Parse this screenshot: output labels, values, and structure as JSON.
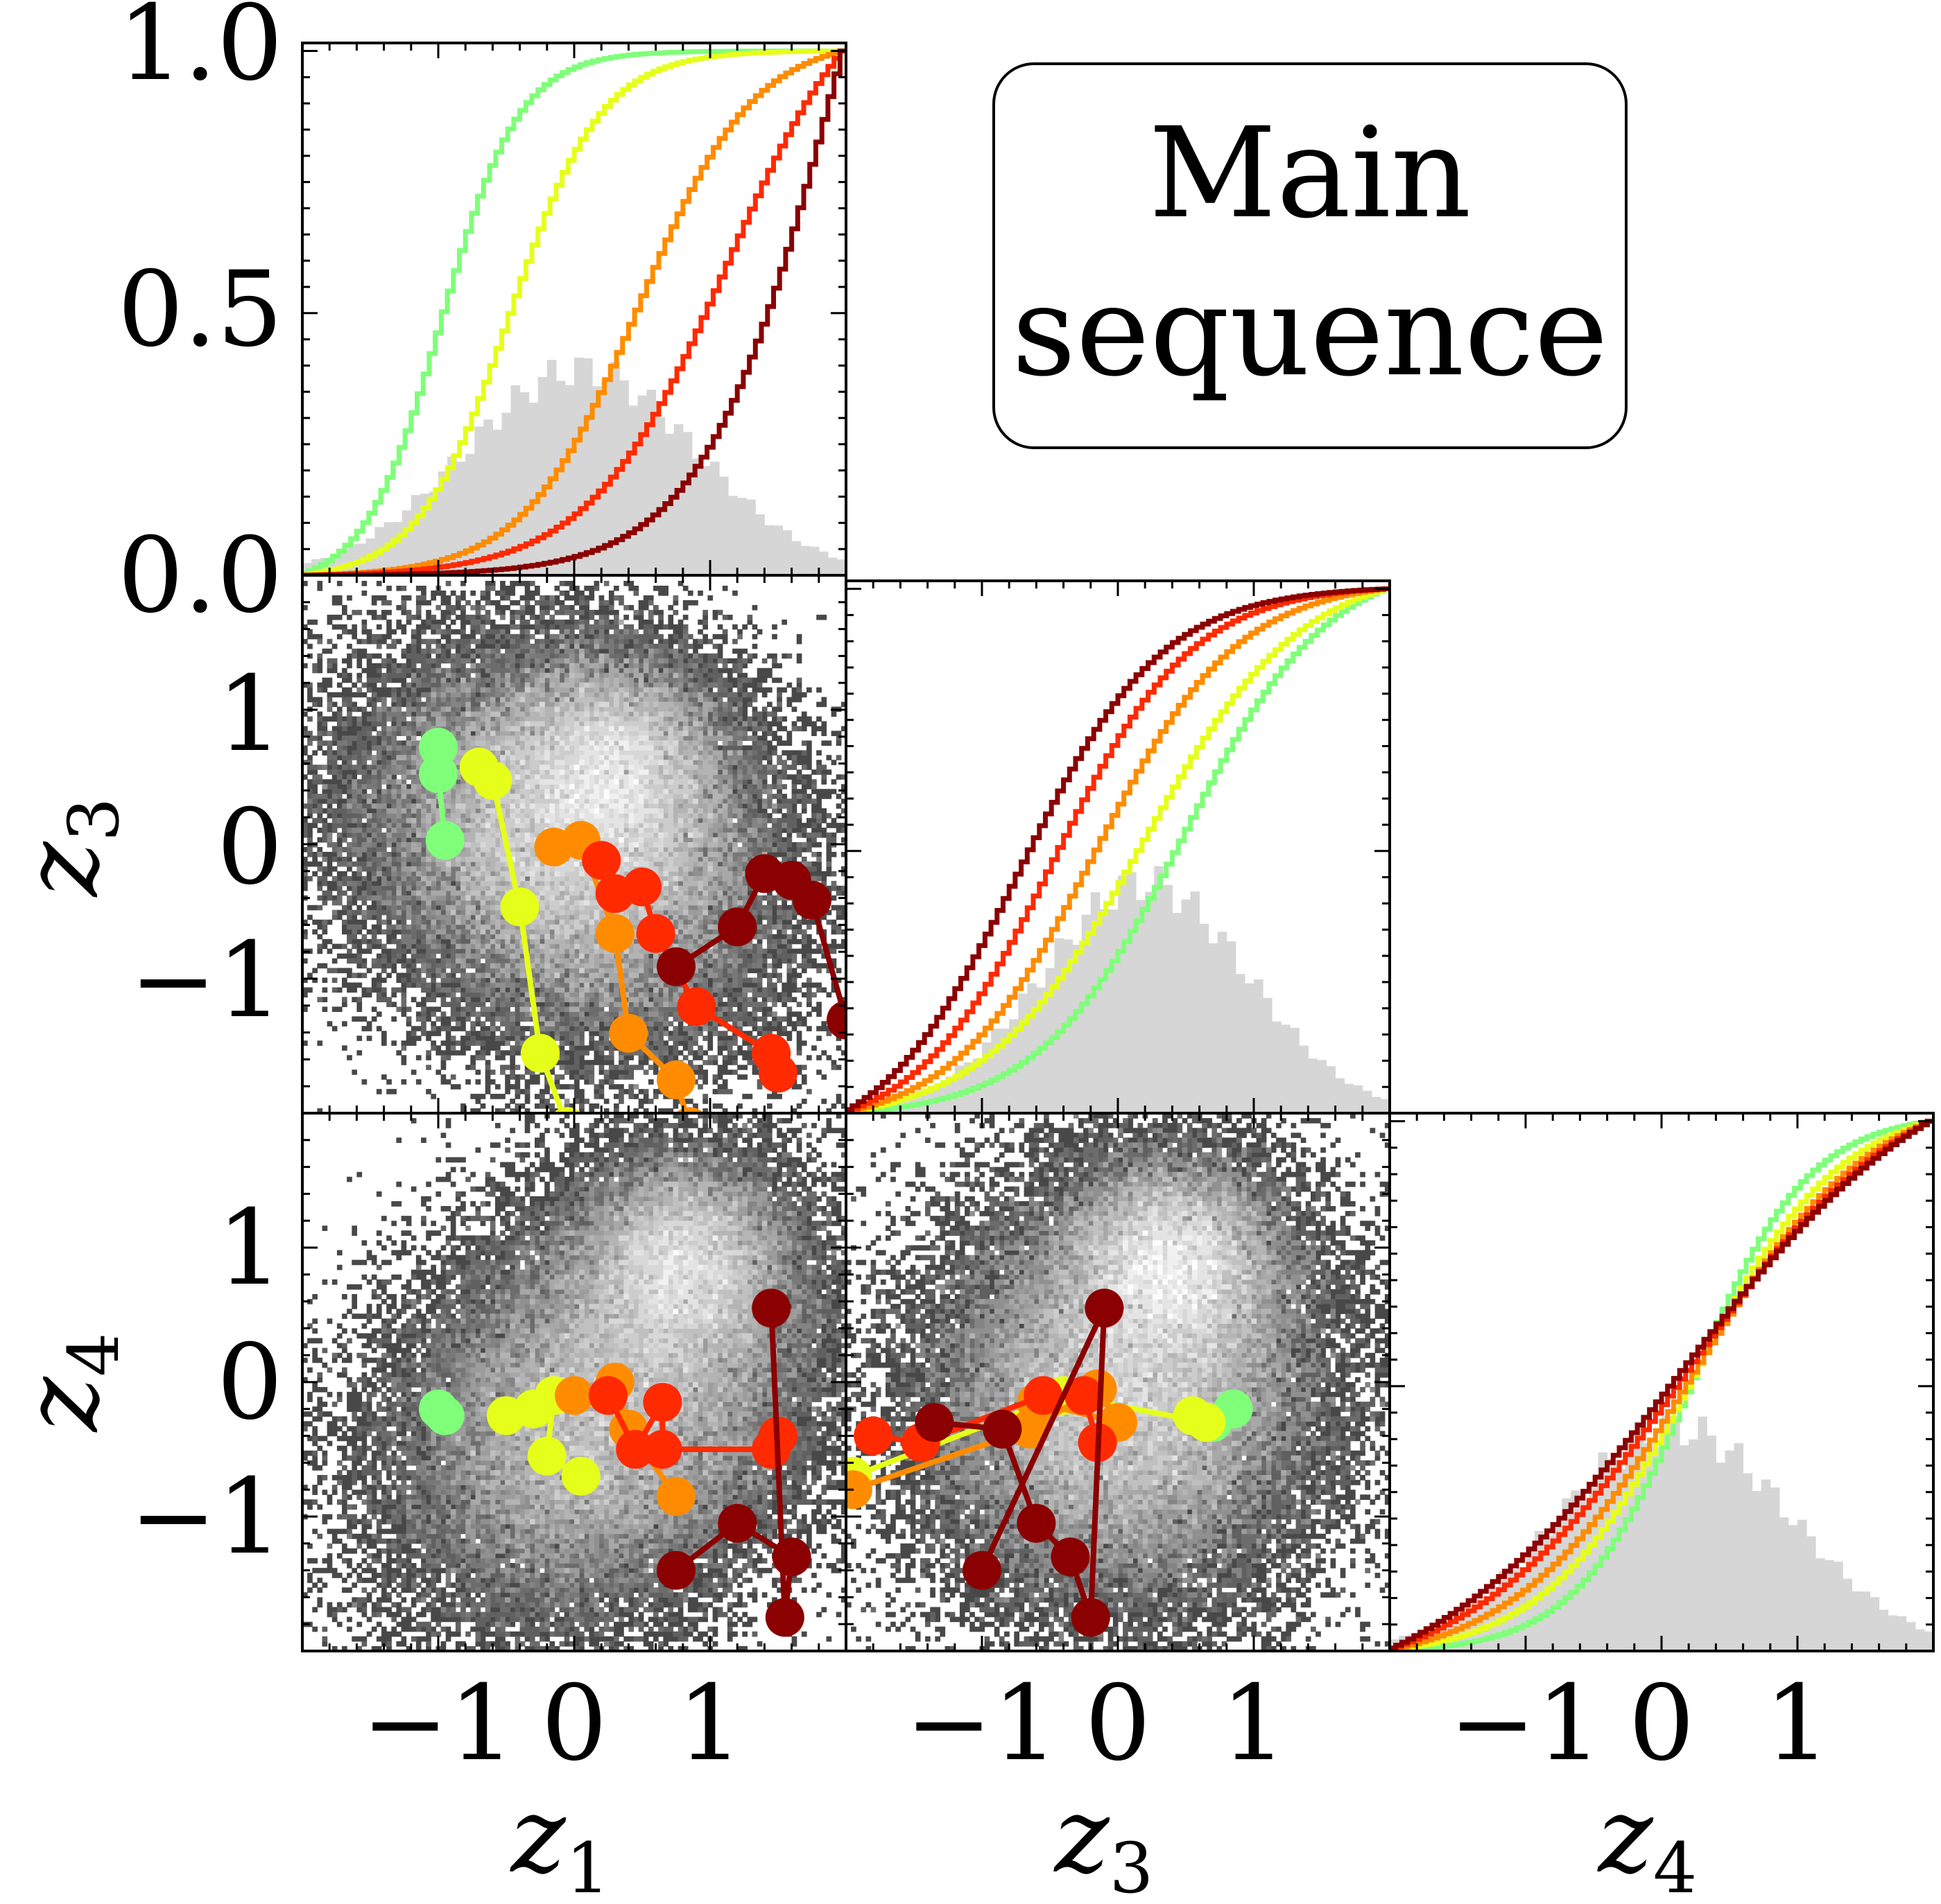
{
  "annotation": {
    "line1": "Main",
    "line2": "sequence"
  },
  "chart_data": {
    "type": "corner",
    "series_colors": [
      "#7fff7a",
      "#e6ff1a",
      "#ff8c00",
      "#ff2a00",
      "#8b0000"
    ],
    "diag_ticks": [
      "0.0",
      "0.5",
      "1.0"
    ],
    "variables": [
      {
        "name": "z",
        "sub": "1",
        "ticks": [
          "−1",
          "0",
          "1"
        ]
      },
      {
        "name": "z",
        "sub": "3",
        "ticks": [
          "−1",
          "0",
          "1"
        ]
      },
      {
        "name": "z",
        "sub": "4",
        "ticks": [
          "−1",
          "0",
          "1"
        ]
      }
    ],
    "range": [
      -2.0,
      2.0
    ],
    "cdf_ylim": [
      0,
      1
    ],
    "cdf_series": [
      {
        "var": 0,
        "lows": [
          -1.0,
          -0.5,
          0.4,
          1.0,
          1.9
        ],
        "highs": [
          -0.9,
          -0.4,
          0.6,
          1.3,
          2.0
        ]
      },
      {
        "var": 1,
        "lows": [
          0.9,
          0.6,
          0.1,
          -0.3,
          -0.6
        ],
        "highs": [
          0.1,
          -0.2,
          -0.4,
          -0.6,
          -0.8
        ]
      },
      {
        "var": 2,
        "lows": [
          0.0,
          -0.1,
          -0.2,
          -0.4,
          -0.6
        ],
        "highs": [
          0.5,
          0.6,
          0.7,
          0.8,
          0.9
        ]
      }
    ],
    "tracks": {
      "z3_vs_z1": [
        [
          [
            -1.0,
            0.75
          ],
          [
            -1.0,
            0.55
          ],
          [
            -0.95,
            0.05
          ]
        ],
        [
          [
            -0.7,
            0.6
          ],
          [
            -0.6,
            0.5
          ],
          [
            -0.4,
            -0.45
          ],
          [
            -0.25,
            -1.55
          ],
          [
            -0.05,
            -2.1
          ]
        ],
        [
          [
            -0.15,
            0.0
          ],
          [
            0.05,
            0.05
          ],
          [
            0.3,
            -0.65
          ],
          [
            0.4,
            -1.4
          ],
          [
            0.75,
            -1.75
          ],
          [
            0.85,
            -2.1
          ]
        ],
        [
          [
            0.2,
            -0.1
          ],
          [
            0.3,
            -0.35
          ],
          [
            0.5,
            -0.3
          ],
          [
            0.6,
            -0.65
          ],
          [
            0.9,
            -1.2
          ],
          [
            1.45,
            -1.55
          ],
          [
            1.5,
            -1.7
          ]
        ],
        [
          [
            0.75,
            -0.9
          ],
          [
            1.2,
            -0.6
          ],
          [
            1.4,
            -0.2
          ],
          [
            1.6,
            -0.25
          ],
          [
            1.75,
            -0.4
          ],
          [
            2.0,
            -1.3
          ]
        ]
      ],
      "z4_vs_z1": [
        [
          [
            -1.0,
            -0.2
          ],
          [
            -0.95,
            -0.25
          ]
        ],
        [
          [
            -0.5,
            -0.25
          ],
          [
            -0.3,
            -0.2
          ],
          [
            -0.15,
            -0.1
          ],
          [
            -0.2,
            -0.55
          ],
          [
            0.05,
            -0.7
          ]
        ],
        [
          [
            0.0,
            -0.1
          ],
          [
            0.3,
            0.0
          ],
          [
            0.4,
            -0.35
          ],
          [
            0.75,
            -0.85
          ]
        ],
        [
          [
            0.25,
            -0.1
          ],
          [
            0.45,
            -0.5
          ],
          [
            0.65,
            -0.15
          ],
          [
            0.65,
            -0.5
          ],
          [
            1.45,
            -0.5
          ],
          [
            1.5,
            -0.4
          ]
        ],
        [
          [
            0.75,
            -1.4
          ],
          [
            1.2,
            -1.05
          ],
          [
            1.6,
            -1.3
          ],
          [
            1.55,
            -1.75
          ],
          [
            1.45,
            0.55
          ]
        ]
      ],
      "z4_vs_z3": [
        [
          [
            0.85,
            -0.2
          ],
          [
            0.7,
            -0.3
          ]
        ],
        [
          [
            0.55,
            -0.25
          ],
          [
            0.65,
            -0.3
          ],
          [
            -0.4,
            -0.1
          ],
          [
            -1.95,
            -0.7
          ]
        ],
        [
          [
            -0.6,
            -0.15
          ],
          [
            0.0,
            -0.3
          ],
          [
            -0.15,
            -0.05
          ],
          [
            -0.65,
            -0.35
          ],
          [
            -1.95,
            -0.8
          ]
        ],
        [
          [
            -0.15,
            -0.45
          ],
          [
            -0.25,
            -0.1
          ],
          [
            -0.55,
            -0.1
          ],
          [
            -1.45,
            -0.45
          ],
          [
            -1.8,
            -0.4
          ]
        ],
        [
          [
            -1.35,
            -0.3
          ],
          [
            -0.85,
            -0.35
          ],
          [
            -0.6,
            -1.05
          ],
          [
            -0.35,
            -1.3
          ],
          [
            -0.2,
            -1.75
          ],
          [
            -0.1,
            0.55
          ],
          [
            -1.0,
            -1.4
          ]
        ]
      ]
    }
  }
}
